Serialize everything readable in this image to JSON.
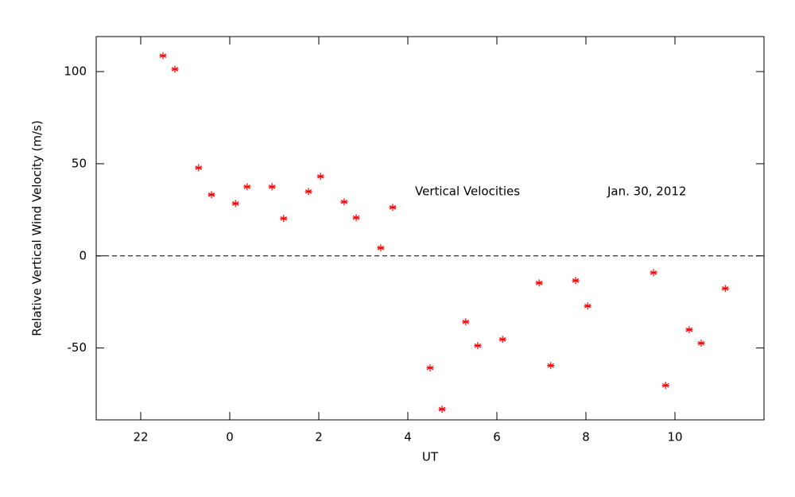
{
  "chart_data": {
    "type": "scatter",
    "xlabel": "UT",
    "ylabel": "Relative Vertical Wind Velocity (m/s)",
    "annotations": [
      "Vertical Velocities",
      "Jan. 30, 2012"
    ],
    "color": "#ff0000",
    "marker": "asterisk",
    "zero_line": true,
    "xlim": [
      21,
      36
    ],
    "xticks": [
      {
        "value": 22,
        "label": "22"
      },
      {
        "value": 24,
        "label": "0"
      },
      {
        "value": 26,
        "label": "2"
      },
      {
        "value": 28,
        "label": "4"
      },
      {
        "value": 30,
        "label": "6"
      },
      {
        "value": 32,
        "label": "8"
      },
      {
        "value": 34,
        "label": "10"
      }
    ],
    "ylim": [
      -89,
      119
    ],
    "yticks": [
      -50,
      0,
      50,
      100
    ],
    "x": [
      22.5,
      22.77,
      23.3,
      23.59,
      24.13,
      24.39,
      24.95,
      25.21,
      25.77,
      26.04,
      26.57,
      26.84,
      27.39,
      27.66,
      28.5,
      28.77,
      29.3,
      29.57,
      30.13,
      30.95,
      31.21,
      31.77,
      32.04,
      33.52,
      33.79,
      34.32,
      34.59,
      35.13
    ],
    "values": [
      108.6,
      101.3,
      47.8,
      33.2,
      28.4,
      37.5,
      37.5,
      20.3,
      34.9,
      43.1,
      29.3,
      20.7,
      4.3,
      26.3,
      -60.8,
      -83.2,
      -35.8,
      -48.7,
      -45.3,
      -14.7,
      -59.5,
      -13.4,
      -27.2,
      -9.1,
      -70.3,
      -40.1,
      -47.4,
      -17.7
    ]
  }
}
